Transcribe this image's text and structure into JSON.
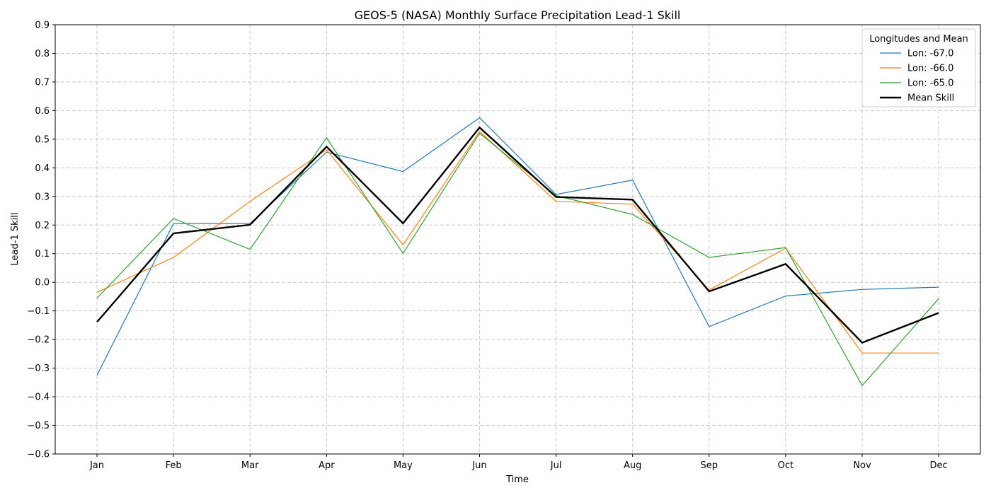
{
  "chart_data": {
    "type": "line",
    "title": "GEOS-5 (NASA) Monthly Surface Precipitation Lead-1 Skill",
    "xlabel": "Time",
    "ylabel": "Lead-1 Skill",
    "categories": [
      "Jan",
      "Feb",
      "Mar",
      "Apr",
      "May",
      "Jun",
      "Jul",
      "Aug",
      "Sep",
      "Oct",
      "Nov",
      "Dec"
    ],
    "ylim": [
      -0.6,
      0.9
    ],
    "yticks": [
      "-0.6",
      "-0.5",
      "-0.4",
      "-0.3",
      "-0.2",
      "-0.1",
      "0.0",
      "0.1",
      "0.2",
      "0.3",
      "0.4",
      "0.5",
      "0.6",
      "0.7",
      "0.8",
      "0.9"
    ],
    "grid": true,
    "legend": {
      "title": "Longitudes and Mean",
      "placement": "top-right"
    },
    "series": [
      {
        "name": "Lon: -67.0",
        "color": "#1f77b4",
        "values": [
          -0.325,
          0.205,
          0.205,
          0.455,
          0.387,
          0.575,
          0.307,
          0.357,
          -0.155,
          -0.048,
          -0.025,
          -0.017
        ]
      },
      {
        "name": "Lon: -66.0",
        "color": "#ff7f0e",
        "values": [
          -0.035,
          0.087,
          0.283,
          0.463,
          0.131,
          0.527,
          0.283,
          0.273,
          -0.027,
          0.119,
          -0.247,
          -0.247
        ]
      },
      {
        "name": "Lon: -65.0",
        "color": "#2ca02c",
        "values": [
          -0.055,
          0.223,
          0.115,
          0.505,
          0.101,
          0.521,
          0.303,
          0.237,
          0.087,
          0.121,
          -0.361,
          -0.057
        ]
      },
      {
        "name": "Mean Skill",
        "color": "#000000",
        "bold": true,
        "values": [
          -0.139,
          0.171,
          0.201,
          0.474,
          0.206,
          0.541,
          0.298,
          0.289,
          -0.032,
          0.064,
          -0.211,
          -0.107
        ]
      }
    ]
  }
}
